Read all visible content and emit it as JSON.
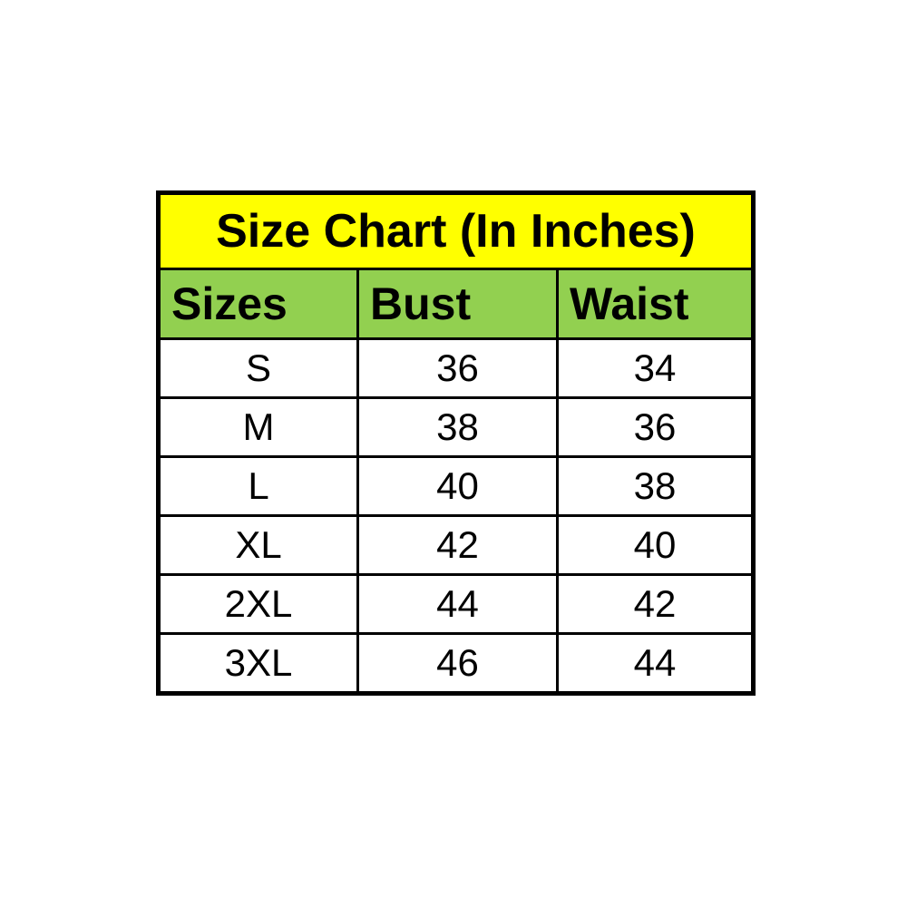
{
  "page": {
    "background_color": "#FFFFFF"
  },
  "colors": {
    "title_background": "#FFFF00",
    "header_background": "#92D050",
    "cell_background": "#FFFFFF",
    "border_color": "#000000",
    "text_color": "#000000"
  },
  "chart_data": {
    "type": "table",
    "title": "Size Chart (In Inches)",
    "columns": [
      "Sizes",
      "Bust",
      "Waist"
    ],
    "rows": [
      [
        "S",
        "36",
        "34"
      ],
      [
        "M",
        "38",
        "36"
      ],
      [
        "L",
        "40",
        "38"
      ],
      [
        "XL",
        "42",
        "40"
      ],
      [
        "2XL",
        "44",
        "42"
      ],
      [
        "3XL",
        "46",
        "44"
      ]
    ]
  }
}
